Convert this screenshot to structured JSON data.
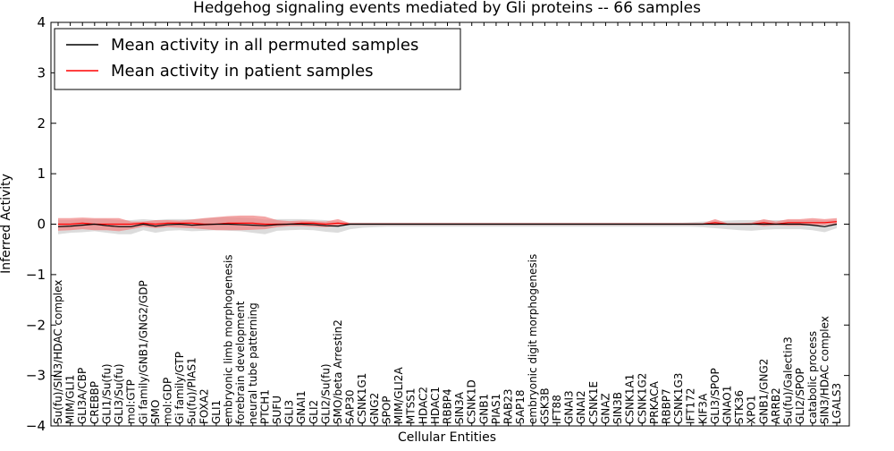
{
  "chart_data": {
    "type": "line",
    "title": "Hedgehog signaling events mediated by Gli proteins -- 66 samples",
    "xlabel": "Cellular Entities",
    "ylabel": "Inferred Activity",
    "ylim": [
      -4,
      4
    ],
    "yticks": [
      -4,
      -3,
      -2,
      -1,
      0,
      1,
      2,
      3,
      4
    ],
    "ytick_labels": [
      "−4",
      "−3",
      "−2",
      "−1",
      "0",
      "1",
      "2",
      "3",
      "4"
    ],
    "grid": false,
    "legend_position": "top-left",
    "categories": [
      "Su(fu)/SIN3/HDAC complex",
      "MIM/GLI1",
      "GLI3A/CBP",
      "CREBBP",
      "GLI1/Su(fu)",
      "GLI3/Su(fu)",
      "mol:GTP",
      "Gi family/GNB1/GNG2/GDP",
      "SMO",
      "mol:GDP",
      "Gi family/GTP",
      "Su(fu)/PIAS1",
      "FOXA2",
      "GLI1",
      "embryonic limb morphogenesis",
      "forebrain development",
      "neural tube patterning",
      "PTCH1",
      "SUFU",
      "GLI3",
      "GNAI1",
      "GLI2",
      "GLI2/Su(fu)",
      "SMO/beta Arrestin2",
      "SAP30",
      "CSNK1G1",
      "GNG2",
      "SPOP",
      "MIM/GLI2A",
      "MTSS1",
      "HDAC2",
      "HDAC1",
      "RBBP4",
      "SIN3A",
      "CSNK1D",
      "GNB1",
      "PIAS1",
      "RAB23",
      "SAP18",
      "embryonic digit morphogenesis",
      "GSK3B",
      "IFT88",
      "GNAI3",
      "GNAI2",
      "CSNK1E",
      "GNAZ",
      "SIN3B",
      "CSNK1A1",
      "CSNK1G2",
      "PRKACA",
      "RBBP7",
      "CSNK1G3",
      "IFT172",
      "KIF3A",
      "GLI3/SPOP",
      "GNAO1",
      "STK36",
      "XPO1",
      "GNB1/GNG2",
      "ARRB2",
      "Su(fu)/Galectin3",
      "GLI2/SPOP",
      "catabolic process",
      "SIN3/HDAC complex",
      "LGALS3"
    ],
    "series": [
      {
        "name": "Mean activity in all permuted samples",
        "color": "#000000",
        "values": [
          -0.05,
          -0.04,
          -0.02,
          0,
          -0.03,
          -0.05,
          -0.05,
          0,
          -0.04,
          -0.01,
          0,
          -0.02,
          -0.01,
          0,
          0,
          -0.01,
          -0.02,
          -0.03,
          -0.01,
          0,
          0,
          -0.01,
          -0.03,
          -0.04,
          0,
          0,
          0,
          0,
          0,
          0,
          0,
          0,
          0,
          0,
          0,
          0,
          0,
          0,
          0,
          0,
          0,
          0,
          0,
          0,
          0,
          0,
          0,
          0,
          0,
          0,
          0,
          0,
          0,
          0,
          0,
          0,
          0,
          0,
          0,
          0,
          0,
          0,
          -0.02,
          -0.05,
          0
        ],
        "band_low": [
          -0.2,
          -0.17,
          -0.16,
          -0.14,
          -0.17,
          -0.2,
          -0.2,
          -0.12,
          -0.17,
          -0.13,
          -0.12,
          -0.14,
          -0.13,
          -0.12,
          -0.13,
          -0.14,
          -0.17,
          -0.2,
          -0.13,
          -0.12,
          -0.11,
          -0.12,
          -0.15,
          -0.17,
          -0.1,
          -0.07,
          -0.06,
          -0.05,
          -0.05,
          -0.05,
          -0.05,
          -0.05,
          -0.05,
          -0.05,
          -0.05,
          -0.05,
          -0.05,
          -0.05,
          -0.05,
          -0.05,
          -0.05,
          -0.05,
          -0.05,
          -0.05,
          -0.05,
          -0.05,
          -0.05,
          -0.05,
          -0.05,
          -0.05,
          -0.05,
          -0.05,
          -0.05,
          -0.06,
          -0.08,
          -0.1,
          -0.12,
          -0.13,
          -0.11,
          -0.1,
          -0.1,
          -0.1,
          -0.12,
          -0.16,
          -0.08
        ],
        "band_high": [
          0.08,
          0.08,
          0.1,
          0.1,
          0.1,
          0.08,
          0.08,
          0.1,
          0.08,
          0.1,
          0.1,
          0.1,
          0.11,
          0.13,
          0.14,
          0.13,
          0.12,
          0.09,
          0.1,
          0.1,
          0.1,
          0.09,
          0.08,
          0.05,
          0.03,
          0.03,
          0.03,
          0.03,
          0.03,
          0.03,
          0.03,
          0.03,
          0.03,
          0.03,
          0.03,
          0.03,
          0.03,
          0.03,
          0.03,
          0.03,
          0.03,
          0.03,
          0.03,
          0.03,
          0.03,
          0.03,
          0.03,
          0.03,
          0.03,
          0.03,
          0.03,
          0.03,
          0.04,
          0.05,
          0.06,
          0.07,
          0.08,
          0.08,
          0.08,
          0.08,
          0.08,
          0.08,
          0.08,
          0.07,
          0.08
        ]
      },
      {
        "name": "Mean activity in patient samples",
        "color": "#ff0000",
        "values": [
          0,
          0,
          0.02,
          0,
          0,
          0,
          0,
          0.02,
          0,
          0.02,
          0.02,
          0.02,
          0,
          0,
          0.02,
          0.02,
          0.02,
          0,
          0,
          0,
          0.02,
          0.02,
          0,
          0.02,
          0,
          0,
          0,
          0,
          0,
          0,
          0,
          0,
          0,
          0,
          0,
          0,
          0,
          0,
          0,
          0,
          0,
          0,
          0,
          0,
          0,
          0,
          0,
          0,
          0,
          0,
          0,
          0,
          0,
          0,
          0.03,
          0,
          0,
          0,
          0.03,
          0,
          0.03,
          0.03,
          0.03,
          0.03,
          0.05
        ],
        "band_low": [
          -0.13,
          -0.12,
          -0.1,
          -0.12,
          -0.12,
          -0.14,
          -0.1,
          -0.05,
          -0.08,
          -0.06,
          -0.07,
          -0.08,
          -0.1,
          -0.12,
          -0.12,
          -0.12,
          -0.11,
          -0.1,
          -0.06,
          -0.04,
          -0.04,
          -0.05,
          -0.06,
          -0.04,
          0,
          0,
          0,
          0,
          0,
          0,
          0,
          0,
          0,
          0,
          0,
          0,
          0,
          0,
          0,
          0,
          0,
          0,
          0,
          0,
          0,
          0,
          0,
          0,
          0,
          0,
          0,
          0,
          0,
          0,
          -0.02,
          0,
          0,
          0,
          -0.04,
          -0.02,
          -0.03,
          -0.03,
          -0.02,
          -0.02,
          0
        ],
        "band_high": [
          0.12,
          0.12,
          0.13,
          0.12,
          0.12,
          0.12,
          0.05,
          0.05,
          0.08,
          0.08,
          0.07,
          0.09,
          0.12,
          0.14,
          0.16,
          0.17,
          0.17,
          0.15,
          0.08,
          0.06,
          0.07,
          0.06,
          0.05,
          0.1,
          0.02,
          0.02,
          0.02,
          0.02,
          0.02,
          0.02,
          0.02,
          0.02,
          0.02,
          0.02,
          0.02,
          0.02,
          0.02,
          0.02,
          0.02,
          0.02,
          0.02,
          0.02,
          0.02,
          0.02,
          0.02,
          0.02,
          0.02,
          0.02,
          0.02,
          0.02,
          0.02,
          0.02,
          0.02,
          0.02,
          0.1,
          0.02,
          0.02,
          0.03,
          0.1,
          0.05,
          0.1,
          0.1,
          0.12,
          0.1,
          0.12
        ]
      }
    ],
    "band_colors": {
      "permuted": "#d0d0d0",
      "patient": "#f08080"
    }
  }
}
